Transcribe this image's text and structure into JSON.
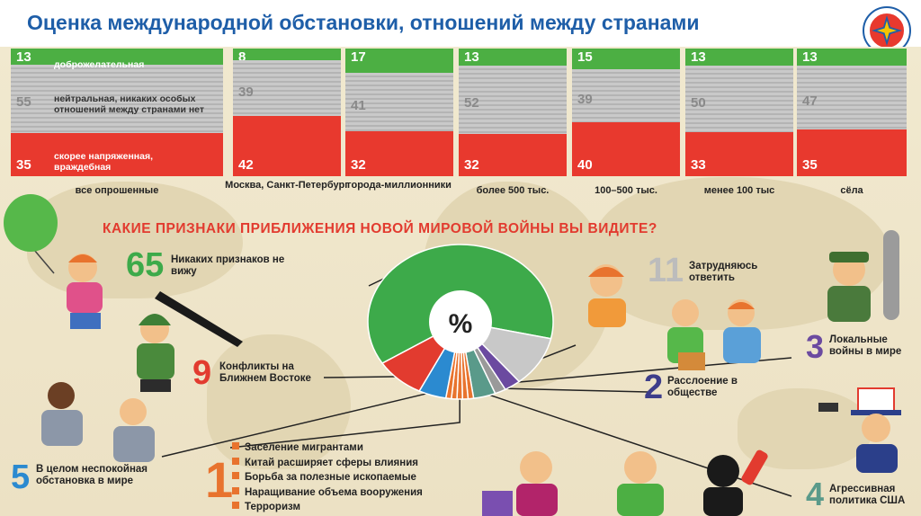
{
  "slide": {
    "title": "Оценка международной обстановки, отношений между странами"
  },
  "colors": {
    "green": "#4caf43",
    "grey": "#c4c4c4",
    "red": "#e8392e",
    "title": "#1e5ea8",
    "question": "#e23b2f"
  },
  "chart_data": [
    {
      "type": "bar",
      "stacked": true,
      "categories": [
        "все опрошенные",
        "Москва, Санкт-Петербург",
        "города-миллионники",
        "более 500 тыс.",
        "100–500 тыс.",
        "менее 100 тыс",
        "сёла"
      ],
      "series": [
        {
          "name": "доброжелательная",
          "values": [
            13,
            8,
            17,
            13,
            15,
            13,
            13
          ],
          "color": "#4caf43"
        },
        {
          "name": "нейтральная, никаких особых отношений между странами нет",
          "values": [
            55,
            39,
            41,
            52,
            39,
            50,
            47
          ],
          "color": "#c4c4c4"
        },
        {
          "name": "скорее напряженная, враждебная",
          "values": [
            35,
            42,
            32,
            32,
            40,
            33,
            35
          ],
          "color": "#e8392e"
        }
      ],
      "value_labels": [
        [
          "13",
          "55",
          "35"
        ],
        [
          "8",
          "39",
          "42"
        ],
        [
          "17",
          "41",
          "32"
        ],
        [
          "13",
          "52",
          "32"
        ],
        [
          "15",
          "39",
          "40"
        ],
        [
          "13",
          "50",
          "33"
        ],
        [
          "13",
          "47",
          "35"
        ]
      ]
    },
    {
      "type": "pie",
      "title": "КАКИЕ ПРИЗНАКИ ПРИБЛИЖЕНИЯ НОВОЙ МИРОВОЙ ВОЙНЫ ВЫ ВИДИТЕ?",
      "center_label": "%",
      "slices": [
        {
          "label": "Никаких признаков не вижу",
          "value": 65,
          "color": "#3daa4a"
        },
        {
          "label": "Затрудняюсь ответить",
          "value": 11,
          "color": "#c8c8c8"
        },
        {
          "label": "Локальные войны в мире",
          "value": 3,
          "color": "#6b4aa0"
        },
        {
          "label": "Расслоение в обществе",
          "value": 2,
          "color": "#9a9a9a"
        },
        {
          "label": "Агрессивная политика США",
          "value": 4,
          "color": "#5a9a8a"
        },
        {
          "label": "Заселение мигрантами, Китай расширяет сферы влияния, Борьба за полезные ископаемые, Наращивание объема вооружения, Терроризм",
          "value": 1,
          "color": "#e8732e",
          "multi": 5
        },
        {
          "label": "В целом неспокойная обстановка в мире",
          "value": 5,
          "color": "#2b8ad0"
        },
        {
          "label": "Конфликты на Ближнем Востоке",
          "value": 9,
          "color": "#e23b2f"
        }
      ]
    }
  ],
  "annotations": {
    "a65": {
      "num": "65",
      "text": "Никаких признаков не вижу"
    },
    "a9": {
      "num": "9",
      "text": "Конфликты на Ближнем Востоке"
    },
    "a11": {
      "num": "11",
      "text": "Затрудняюсь ответить"
    },
    "a2": {
      "num": "2",
      "text": "Расслоение в обществе"
    },
    "a3": {
      "num": "3",
      "text": "Локальные войны в мире"
    },
    "a4": {
      "num": "4",
      "text": "Агрессивная политика США"
    },
    "a5": {
      "num": "5",
      "text": "В целом неспокойная обстановка в мире"
    },
    "a1": {
      "num": "1"
    }
  },
  "legend_items": [
    "Заселение мигрантами",
    "Китай расширяет сферы влияния",
    "Борьба за полезные ископаемые",
    "Наращивание объема вооружения",
    "Терроризм"
  ]
}
